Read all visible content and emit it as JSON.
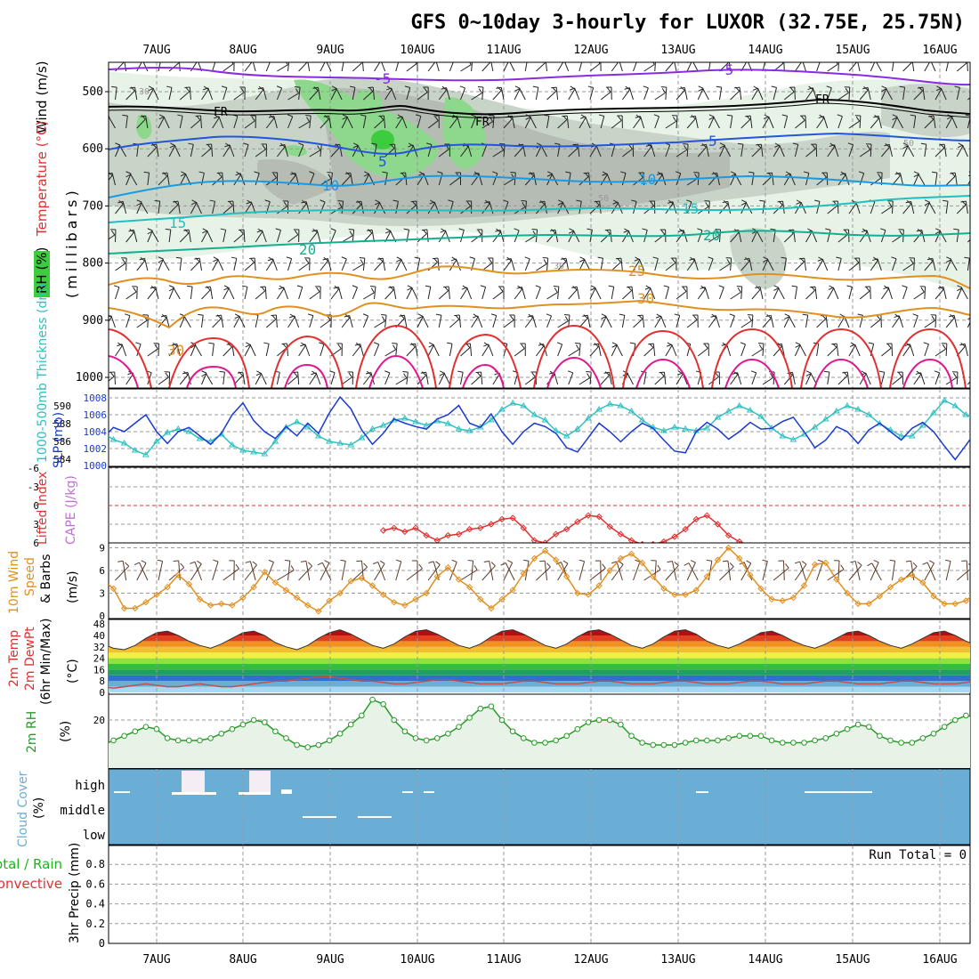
{
  "title": "GFS 0~10day 3-hourly for LUXOR (32.75E, 25.75N)",
  "day_labels": [
    "7AUG",
    "8AUG",
    "9AUG",
    "10AUG",
    "11AUG",
    "12AUG",
    "13AUG",
    "14AUG",
    "15AUG",
    "16AUG"
  ],
  "colors": {
    "rh_light": "#e8f3e8",
    "rh_mid": "#c9d4c9",
    "rh_gray": "#b4bcb4",
    "rh_green": "#8ed88e",
    "rh_dark": "#3dcc3d",
    "temp_purple": "#8a2be2",
    "temp_blue": "#2255dd",
    "temp_lblue": "#1a9ae0",
    "temp_cyan": "#20c0c0",
    "temp_teal": "#10b090",
    "temp_orange": "#e09020",
    "temp_red": "#e03030",
    "temp_pink": "#e01890",
    "slp": "#1a3ad0",
    "thickness": "#30c0c0",
    "lifted_index": "#e03030",
    "cape": "#c070d0",
    "wind_speed": "#e09020",
    "cloud": "#6aaed6",
    "rh2m": "#2a9a2a",
    "precip_total": "#20b020",
    "precip_conv": "#e03030"
  },
  "panels": {
    "upper": {
      "label_wind": "Wind (m/s)",
      "label_temperature": "Temperature (°C)",
      "label_rh": "RH (%)",
      "label_millibars": "(millibars)",
      "pressure_ticks": [
        "500",
        "600",
        "700",
        "800",
        "900",
        "1000"
      ],
      "contour_labels": [
        "-5",
        "-5",
        "FR",
        "FR",
        "FR",
        "5",
        "5",
        "10",
        "10",
        "15",
        "15",
        "20",
        "20",
        "25",
        "30",
        "30",
        "30",
        "50",
        "50",
        "30"
      ]
    },
    "slp": {
      "label_thickness": "1000-500mb Thickness (dm)",
      "label_slp": "SLP (mb)",
      "left_ticks": [
        "590",
        "588",
        "586",
        "584"
      ],
      "right_ticks": [
        "1008",
        "1006",
        "1004",
        "1002",
        "1000"
      ]
    },
    "li": {
      "label_li": "Lifted Index",
      "label_cape": "CAPE (J/kg)",
      "ticks": [
        "-6",
        "-3",
        "0",
        "3",
        "6"
      ]
    },
    "wind10": {
      "label_line1": "10m Wind",
      "label_line2": "Speed",
      "label_line3": "& Barbs",
      "label_units": "(m/s)",
      "ticks": [
        "9",
        "6",
        "3",
        "0"
      ]
    },
    "temp2m": {
      "label_line1": "2m Temp",
      "label_line2": "2m DewPt",
      "label_line3": "(6hr Min/Max)",
      "label_units": "(°C)",
      "ticks": [
        "48",
        "40",
        "32",
        "24",
        "16",
        "8",
        "0"
      ]
    },
    "rh2m": {
      "label": "2m RH",
      "label_units": "(%)",
      "ticks": [
        "20"
      ]
    },
    "cloud": {
      "label": "Cloud Cover",
      "label_units": "(%)",
      "levels": [
        "high",
        "middle",
        "low"
      ]
    },
    "precip": {
      "label_line1": "Total / Rain",
      "label_line2": "Convective",
      "label_axis": "3hr Precip (mm)",
      "ticks": [
        "0.8",
        "0.6",
        "0.4",
        "0.2",
        "0"
      ],
      "run_total": "Run Total = 0"
    }
  },
  "chart_data": [
    {
      "type": "line",
      "name": "SLP",
      "units": "mb",
      "ylim": [
        1000,
        1009
      ],
      "values": [
        1004.0,
        1003.2,
        1004.5,
        1004.0,
        1005.0,
        1006.0,
        1004.0,
        1002.6,
        1004.0,
        1004.5,
        1003.5,
        1002.5,
        1003.8,
        1006.0,
        1007.4,
        1005.3,
        1004.0,
        1003.2,
        1004.6,
        1003.5,
        1005.0,
        1003.8,
        1006.2,
        1008.1,
        1006.7,
        1004.2,
        1002.5,
        1003.8,
        1005.5,
        1005.0,
        1004.6,
        1004.3,
        1005.5,
        1006.0,
        1007.1,
        1005.0,
        1004.5,
        1006.1,
        1004.0,
        1002.5,
        1004.0,
        1005.0,
        1004.6,
        1003.8,
        1002.1,
        1001.6,
        1003.3,
        1005.0,
        1004.0,
        1002.8,
        1004.0,
        1005.0,
        1004.4,
        1003.0,
        1001.7,
        1001.5,
        1004.0,
        1005.1,
        1004.3,
        1003.1,
        1004.0,
        1005.1,
        1004.3,
        1004.4,
        1005.2,
        1005.7,
        1004.0,
        1002.1,
        1003.0,
        1004.6,
        1004.0,
        1002.6,
        1004.2,
        1005.0,
        1004.0,
        1003.0,
        1004.4,
        1005.1,
        1004.0,
        1002.3,
        1000.7,
        1002.4,
        1004.2,
        1003.5,
        1001.8,
        1003.3,
        1005.0,
        1004.0,
        1002.3,
        1004.0,
        1005.1,
        1004.2,
        1004.0,
        1005.8,
        1004.2
      ]
    },
    {
      "type": "line",
      "name": "Thickness",
      "units": "dm",
      "ylim": [
        584,
        591
      ],
      "values": [
        587.3,
        587.0,
        586.2,
        585.8,
        585.0,
        584.5,
        586.0,
        587.0,
        587.4,
        587.1,
        586.3,
        586.0,
        586.8,
        585.6,
        585.0,
        584.8,
        584.6,
        586.0,
        587.6,
        588.2,
        587.6,
        586.6,
        586.0,
        585.8,
        585.6,
        586.4,
        587.4,
        587.8,
        588.4,
        588.6,
        588.2,
        587.8,
        588.3,
        588.0,
        587.4,
        587.2,
        587.6,
        588.4,
        589.6,
        590.3,
        590.0,
        589.0,
        588.4,
        587.2,
        586.6,
        587.4,
        588.6,
        589.6,
        590.2,
        590.0,
        589.4,
        588.4,
        587.6,
        587.2,
        587.6,
        587.4,
        587.2,
        587.5,
        588.7,
        589.4,
        590.0,
        589.5,
        588.8,
        587.5,
        586.6,
        586.2,
        586.8,
        587.6,
        588.5,
        589.4,
        590.0,
        589.6,
        589.0,
        588.0,
        587.3,
        586.6,
        586.6,
        587.8,
        589.2,
        590.6,
        590.0,
        589.0,
        588.4,
        587.0,
        586.6,
        587.0,
        588.3,
        589.4,
        590.0,
        589.6,
        588.8,
        588.0,
        587.6,
        587.4,
        587.6
      ]
    },
    {
      "type": "line",
      "name": "Lifted Index",
      "units": "",
      "ylim": [
        -6,
        6
      ],
      "values": [
        null,
        null,
        null,
        null,
        null,
        null,
        null,
        null,
        null,
        null,
        null,
        null,
        null,
        null,
        null,
        null,
        null,
        null,
        null,
        null,
        null,
        null,
        null,
        null,
        null,
        null,
        null,
        4.0,
        3.6,
        4.2,
        3.6,
        4.8,
        5.6,
        4.8,
        4.6,
        3.8,
        3.6,
        3.0,
        2.2,
        2.0,
        3.6,
        5.6,
        6.0,
        4.6,
        3.8,
        2.6,
        1.6,
        1.8,
        3.4,
        4.6,
        5.6,
        6.2,
        6.2,
        5.8,
        5.0,
        3.8,
        2.2,
        1.6,
        3.0,
        4.8,
        5.8,
        6.4
      ]
    },
    {
      "type": "line",
      "name": "10m Wind Speed",
      "units": "m/s",
      "ylim": [
        0,
        9
      ],
      "values": [
        5.8,
        4.8,
        3.6,
        1.0,
        1.0,
        1.8,
        2.8,
        3.8,
        5.4,
        4.2,
        2.2,
        1.4,
        1.6,
        1.4,
        2.4,
        3.8,
        5.8,
        4.4,
        3.4,
        2.4,
        1.4,
        0.6,
        2.0,
        3.0,
        4.6,
        5.0,
        4.0,
        2.8,
        1.8,
        1.4,
        2.2,
        3.0,
        5.2,
        6.4,
        4.8,
        3.8,
        2.2,
        1.0,
        2.2,
        3.4,
        5.6,
        7.6,
        8.6,
        7.4,
        5.2,
        3.0,
        2.8,
        4.0,
        6.0,
        7.6,
        8.2,
        7.0,
        5.2,
        3.6,
        2.8,
        2.8,
        3.4,
        5.2,
        7.4,
        9.0,
        7.6,
        5.4,
        3.6,
        2.2,
        2.0,
        2.4,
        4.0,
        6.8,
        7.0,
        4.8,
        3.0,
        1.6,
        1.6,
        2.6,
        3.8,
        4.8,
        5.4,
        4.4,
        2.6,
        1.6,
        1.6,
        2.0,
        3.2,
        4.4,
        5.6,
        5.2,
        4.8,
        3.8,
        2.4,
        1.6,
        1.6,
        2.2,
        2.4
      ]
    },
    {
      "type": "area",
      "name": "2m Temp",
      "units": "°C",
      "ylim": [
        0,
        48
      ],
      "values": [
        36,
        34,
        31,
        30,
        33,
        38,
        42,
        43,
        40,
        36,
        33,
        31,
        34,
        38,
        42,
        43,
        40,
        35,
        32,
        30,
        33,
        38,
        42,
        44,
        41,
        37,
        33,
        31,
        34,
        39,
        43,
        44,
        41,
        37,
        33,
        31,
        34,
        39,
        43,
        44,
        41,
        37,
        33,
        31,
        34,
        39,
        43,
        44,
        41,
        37,
        33,
        31,
        34,
        39,
        43,
        44,
        41,
        36,
        33,
        31,
        34,
        38,
        42,
        43,
        40,
        36,
        33,
        31,
        34,
        38,
        42,
        43,
        40,
        36,
        33,
        31,
        34,
        38,
        42,
        43,
        40,
        36,
        33,
        31,
        34,
        38,
        42,
        43,
        40,
        36,
        33,
        31,
        34,
        38,
        42
      ]
    },
    {
      "type": "line",
      "name": "2m DewPt",
      "units": "°C",
      "ylim": [
        0,
        48
      ],
      "values": [
        5,
        4,
        3,
        4,
        5,
        6,
        5,
        4,
        4,
        5,
        6,
        5,
        4,
        4,
        5,
        6,
        7,
        8,
        8,
        9,
        10,
        11,
        11,
        10,
        9,
        8,
        8,
        7,
        6,
        6,
        7,
        8,
        9,
        9,
        8,
        7,
        6,
        6,
        6,
        7,
        8,
        8,
        7,
        6,
        6,
        6,
        7,
        8,
        8,
        7,
        6,
        6,
        6,
        7,
        8,
        8,
        7,
        6,
        6,
        6,
        7,
        8,
        8,
        7,
        6,
        6,
        6,
        7,
        8,
        8,
        7,
        6,
        6,
        6,
        7,
        8,
        8,
        7,
        6,
        6,
        6,
        7,
        8,
        8,
        7,
        6,
        6,
        6,
        7,
        8,
        8,
        7,
        6,
        6,
        6
      ]
    },
    {
      "type": "area",
      "name": "2m RH",
      "units": "%",
      "ylim": [
        0,
        35
      ],
      "values": [
        8,
        9,
        11,
        13,
        15,
        17,
        16,
        12,
        11,
        11,
        11,
        12,
        14,
        16,
        18,
        20,
        19,
        15,
        12,
        9,
        8,
        9,
        11,
        14,
        18,
        22,
        29,
        27,
        20,
        15,
        12,
        11,
        12,
        14,
        17,
        21,
        25,
        26,
        20,
        15,
        12,
        10,
        10,
        11,
        13,
        16,
        19,
        20,
        20,
        18,
        13,
        10,
        9,
        9,
        9,
        10,
        11,
        11,
        11,
        12,
        13,
        13,
        13,
        11,
        10,
        10,
        10,
        11,
        12,
        14,
        16,
        18,
        17,
        13,
        11,
        10,
        10,
        12,
        14,
        17,
        20,
        22,
        21,
        17,
        13,
        11,
        10,
        10,
        13,
        16,
        19,
        19,
        17,
        13,
        9
      ]
    },
    {
      "type": "bar",
      "name": "3hr Precip",
      "units": "mm",
      "ylim": [
        0,
        1.0
      ],
      "values": [],
      "run_total": 0
    }
  ]
}
